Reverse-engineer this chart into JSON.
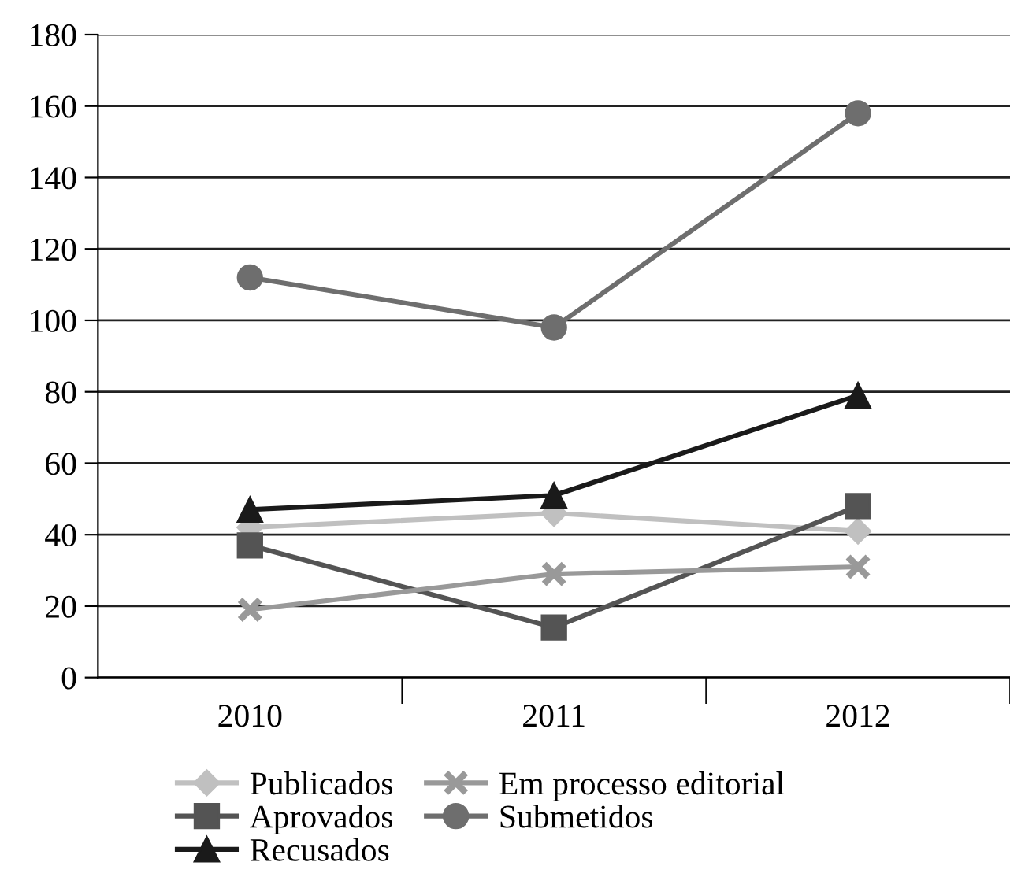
{
  "chart_data": {
    "type": "line",
    "categories": [
      "2010",
      "2011",
      "2012"
    ],
    "series": [
      {
        "name": "Publicados",
        "color": "#c0c0c0",
        "marker": "diamond",
        "values": [
          42,
          46,
          41
        ]
      },
      {
        "name": "Aprovados",
        "color": "#545454",
        "marker": "square",
        "values": [
          37,
          14,
          48
        ]
      },
      {
        "name": "Recusados",
        "color": "#1a1a1a",
        "marker": "triangle",
        "values": [
          47,
          51,
          79
        ]
      },
      {
        "name": "Em processo editorial",
        "color": "#999999",
        "marker": "cross",
        "values": [
          19,
          29,
          31
        ]
      },
      {
        "name": "Submetidos",
        "color": "#6e6e6e",
        "marker": "circle",
        "values": [
          112,
          98,
          158
        ]
      }
    ],
    "ylim": [
      0,
      180
    ],
    "yticks": [
      0,
      20,
      40,
      60,
      80,
      100,
      120,
      140,
      160,
      180
    ],
    "grid": "y",
    "legend": "bottom",
    "line_style": "solid"
  }
}
